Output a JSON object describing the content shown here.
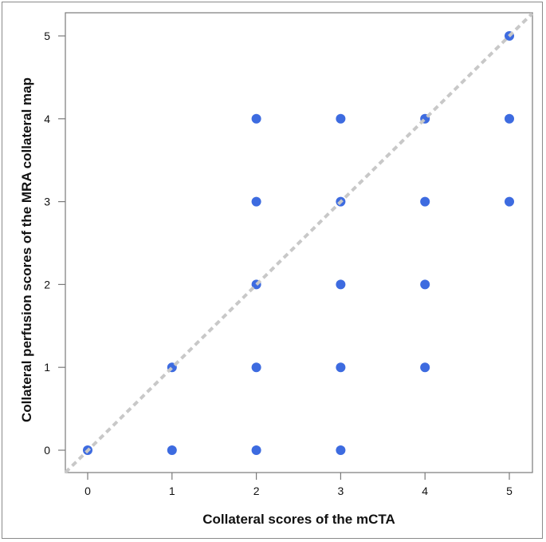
{
  "chart_data": {
    "type": "scatter",
    "title": "",
    "xlabel": "Collateral scores of the mCTA",
    "ylabel": "Collateral perfusion scores of the MRA collateral map",
    "xlim": [
      -0.27,
      5.27
    ],
    "ylim": [
      -0.27,
      5.27
    ],
    "x_ticks": [
      0,
      1,
      2,
      3,
      4,
      5
    ],
    "y_ticks": [
      0,
      1,
      2,
      3,
      4,
      5
    ],
    "grid": false,
    "legend": null,
    "reference_line": {
      "type": "identity",
      "style": "dashed",
      "color": "#c8c8c8",
      "description": "y = x line of agreement"
    },
    "point_color": "#3d6be0",
    "points": [
      {
        "x": 0,
        "y": 0
      },
      {
        "x": 1,
        "y": 0
      },
      {
        "x": 2,
        "y": 0
      },
      {
        "x": 3,
        "y": 0
      },
      {
        "x": 1,
        "y": 1
      },
      {
        "x": 2,
        "y": 1
      },
      {
        "x": 3,
        "y": 1
      },
      {
        "x": 4,
        "y": 1
      },
      {
        "x": 2,
        "y": 2
      },
      {
        "x": 3,
        "y": 2
      },
      {
        "x": 4,
        "y": 2
      },
      {
        "x": 2,
        "y": 3
      },
      {
        "x": 3,
        "y": 3
      },
      {
        "x": 4,
        "y": 3
      },
      {
        "x": 5,
        "y": 3
      },
      {
        "x": 2,
        "y": 4
      },
      {
        "x": 3,
        "y": 4
      },
      {
        "x": 4,
        "y": 4
      },
      {
        "x": 5,
        "y": 4
      },
      {
        "x": 5,
        "y": 5
      }
    ]
  }
}
